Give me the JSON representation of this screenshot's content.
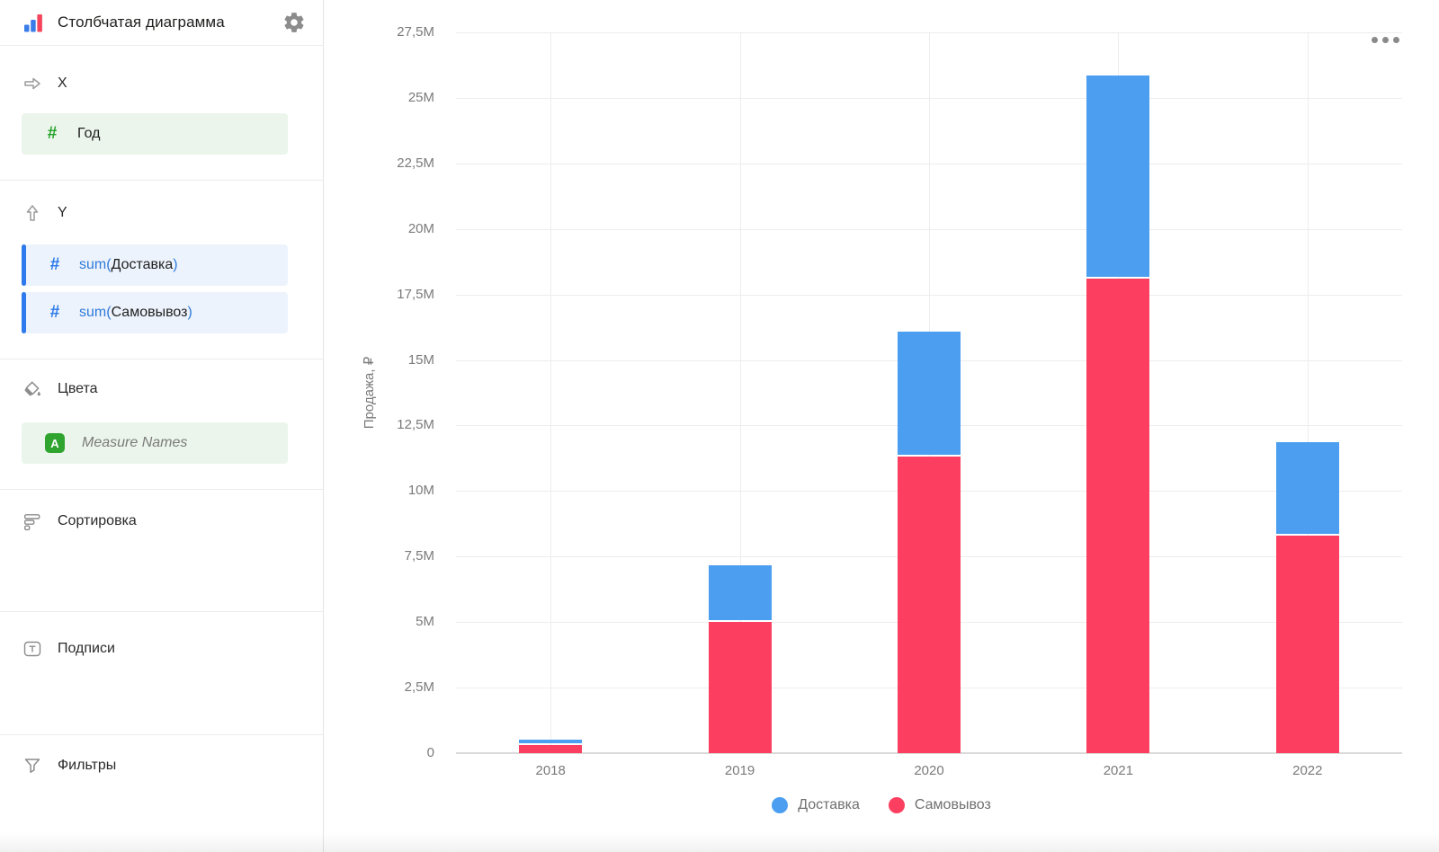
{
  "header": {
    "title": "Столбчатая диаграмма"
  },
  "icons": {
    "number_type_glyph": "#",
    "text_type_glyph": "A",
    "labels_glyph": "T"
  },
  "sidebar": {
    "x_section": {
      "label": "X",
      "field": "Год"
    },
    "y_section": {
      "label": "Y",
      "fields": [
        {
          "prefix": "sum(",
          "name": "Доставка",
          "suffix": ")"
        },
        {
          "prefix": "sum(",
          "name": "Самовывоз",
          "suffix": ")"
        }
      ]
    },
    "colors_section": {
      "label": "Цвета",
      "field": "Measure Names"
    },
    "sorting_section": {
      "label": "Сортировка"
    },
    "labels_section": {
      "label": "Подписи"
    },
    "filters_section": {
      "label": "Фильтры"
    },
    "accent_colors": {
      "dimension_green": "#2fa52f",
      "measure_blue": "#2979e8"
    }
  },
  "chart_data": {
    "type": "bar",
    "stacked": true,
    "title": "",
    "categories": [
      "2018",
      "2019",
      "2020",
      "2021",
      "2022"
    ],
    "series": [
      {
        "name": "Доставка",
        "color": "#4B9EF0",
        "values_millions": [
          0.15,
          2.1,
          4.7,
          7.7,
          3.5
        ]
      },
      {
        "name": "Самовывоз",
        "color": "#FC3F60",
        "values_millions": [
          0.3,
          5.0,
          11.3,
          18.1,
          8.3
        ]
      }
    ],
    "xlabel": "",
    "ylabel": "Продажа, ₽",
    "ylim_millions": [
      0,
      27.5
    ],
    "ytick_step_millions": 2.5,
    "ytick_labels": [
      "0",
      "2,5M",
      "5M",
      "7,5M",
      "10M",
      "12,5M",
      "15M",
      "17,5M",
      "20M",
      "22,5M",
      "25M",
      "27,5M"
    ],
    "grid": true,
    "legend_position": "bottom"
  }
}
